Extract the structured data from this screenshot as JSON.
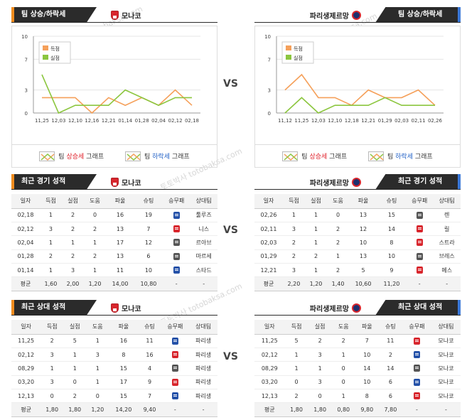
{
  "top": {
    "left": {
      "tab": "팀 상승/하락세",
      "team": "모나코",
      "x_labels": [
        "11,25",
        "12,03",
        "12,10",
        "12,16",
        "12,21",
        "01,14",
        "01,28",
        "02,04",
        "02,12",
        "02,18"
      ],
      "scored": [
        2,
        2,
        2,
        0,
        2,
        1,
        2,
        1,
        3,
        1
      ],
      "conceded": [
        5,
        0,
        1,
        1,
        1,
        3,
        2,
        1,
        2,
        2
      ],
      "y_ticks": [
        "10",
        "7",
        "3",
        "0"
      ],
      "legend_scored": "득점",
      "legend_conceded": "실점"
    },
    "right": {
      "tab": "팀 상승/하락세",
      "team": "파리생제르망",
      "x_labels": [
        "11,12",
        "11,25",
        "12,03",
        "12,10",
        "12,18",
        "12,21",
        "01,29",
        "02,03",
        "02,11",
        "02,26"
      ],
      "scored": [
        3,
        5,
        2,
        2,
        1,
        3,
        2,
        2,
        3,
        1
      ],
      "conceded": [
        0,
        2,
        0,
        1,
        1,
        1,
        2,
        1,
        1,
        1
      ],
      "y_ticks": [
        "10",
        "7",
        "3",
        "0"
      ],
      "legend_scored": "득점",
      "legend_conceded": "실점"
    },
    "legend": {
      "up_prefix": "팀 ",
      "up_word": "상승세",
      "up_suffix": " 그래프",
      "down_prefix": "팀 ",
      "down_word": "하락세",
      "down_suffix": " 그래프"
    },
    "vs": "VS",
    "colors": {
      "scored": "#f5a05a",
      "conceded": "#8cc63f"
    }
  },
  "recent": {
    "tab": "최근 경기 성적",
    "headers": [
      "일자",
      "득점",
      "실점",
      "도움",
      "파울",
      "슈팅",
      "승무패",
      "상대팀"
    ],
    "left": {
      "team": "모나코",
      "rows": [
        [
          "02,18",
          "1",
          "2",
          "0",
          "16",
          "19",
          "w",
          "툴루즈"
        ],
        [
          "02,12",
          "3",
          "2",
          "2",
          "13",
          "7",
          "l",
          "니스"
        ],
        [
          "02,04",
          "1",
          "1",
          "1",
          "17",
          "12",
          "d",
          "르아브"
        ],
        [
          "01,28",
          "2",
          "2",
          "2",
          "13",
          "6",
          "d",
          "마르세"
        ],
        [
          "01,14",
          "1",
          "3",
          "1",
          "11",
          "10",
          "w",
          "스타드"
        ]
      ],
      "avg": [
        "평균",
        "1,60",
        "2,00",
        "1,20",
        "14,00",
        "10,80",
        "-",
        "-"
      ]
    },
    "right": {
      "team": "파리생제르망",
      "rows": [
        [
          "02,26",
          "1",
          "1",
          "0",
          "13",
          "15",
          "d",
          "렌"
        ],
        [
          "02,11",
          "3",
          "1",
          "2",
          "12",
          "14",
          "l",
          "릴"
        ],
        [
          "02,03",
          "2",
          "1",
          "2",
          "10",
          "8",
          "l",
          "스트라"
        ],
        [
          "01,29",
          "2",
          "2",
          "1",
          "13",
          "10",
          "d",
          "브레스"
        ],
        [
          "12,21",
          "3",
          "1",
          "2",
          "5",
          "9",
          "l",
          "메스"
        ]
      ],
      "avg": [
        "평균",
        "2,20",
        "1,20",
        "1,40",
        "10,60",
        "11,20",
        "-",
        "-"
      ]
    }
  },
  "h2h": {
    "tab": "최근 상대 성적",
    "headers": [
      "일자",
      "득점",
      "실점",
      "도움",
      "파울",
      "슈팅",
      "승무패",
      "상대팀"
    ],
    "left": {
      "team": "모나코",
      "rows": [
        [
          "11,25",
          "2",
          "5",
          "1",
          "16",
          "11",
          "w",
          "파리생"
        ],
        [
          "02,12",
          "3",
          "1",
          "3",
          "8",
          "16",
          "l",
          "파리생"
        ],
        [
          "08,29",
          "1",
          "1",
          "1",
          "15",
          "4",
          "d",
          "파리생"
        ],
        [
          "03,20",
          "3",
          "0",
          "1",
          "17",
          "9",
          "l",
          "파리생"
        ],
        [
          "12,13",
          "0",
          "2",
          "0",
          "15",
          "7",
          "w",
          "파리생"
        ]
      ],
      "avg": [
        "평균",
        "1,80",
        "1,80",
        "1,20",
        "14,20",
        "9,40",
        "-",
        "-"
      ]
    },
    "right": {
      "team": "파리생제르망",
      "rows": [
        [
          "11,25",
          "5",
          "2",
          "2",
          "7",
          "11",
          "l",
          "모나코"
        ],
        [
          "02,12",
          "1",
          "3",
          "1",
          "10",
          "2",
          "w",
          "모나코"
        ],
        [
          "08,29",
          "1",
          "1",
          "0",
          "14",
          "14",
          "d",
          "모나코"
        ],
        [
          "03,20",
          "0",
          "3",
          "0",
          "10",
          "6",
          "w",
          "모나코"
        ],
        [
          "12,13",
          "2",
          "0",
          "1",
          "8",
          "6",
          "l",
          "모나코"
        ]
      ],
      "avg": [
        "평균",
        "1,80",
        "1,80",
        "0,80",
        "9,80",
        "7,80",
        "-",
        "-"
      ]
    }
  },
  "watermark": "토토박사 totobaksa.com"
}
